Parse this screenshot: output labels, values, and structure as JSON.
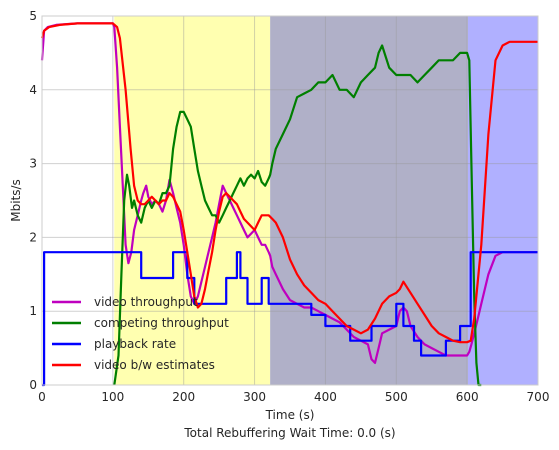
{
  "chart_data": {
    "type": "line",
    "xlabel": "Time (s)",
    "ylabel": "Mbits/s",
    "caption": "Total Rebuffering Wait Time:  0.0 (s)",
    "xlim": [
      0,
      700
    ],
    "ylim": [
      0,
      5
    ],
    "xticks": [
      0,
      100,
      200,
      300,
      400,
      500,
      600,
      700
    ],
    "yticks": [
      0,
      1,
      2,
      3,
      4,
      5
    ],
    "grid": true,
    "legend_position": "lower-left",
    "regions": [
      {
        "x0": 102,
        "x1": 322,
        "color": "#ffffb0"
      },
      {
        "x0": 322,
        "x1": 601,
        "color": "#b0b0c8"
      },
      {
        "x0": 601,
        "x1": 700,
        "color": "#b0b0ff"
      }
    ],
    "series": [
      {
        "name": "video throughput",
        "color": "#bf00bf",
        "x": [
          0,
          3,
          8,
          20,
          50,
          100,
          102,
          106,
          110,
          115,
          118,
          122,
          126,
          130,
          135,
          140,
          143,
          147,
          150,
          155,
          160,
          165,
          170,
          175,
          180,
          185,
          190,
          195,
          200,
          205,
          210,
          215,
          220,
          225,
          230,
          235,
          240,
          245,
          250,
          255,
          260,
          265,
          270,
          275,
          280,
          285,
          290,
          295,
          300,
          305,
          310,
          315,
          320,
          322,
          325,
          330,
          340,
          350,
          360,
          370,
          380,
          390,
          400,
          410,
          420,
          430,
          440,
          450,
          460,
          465,
          470,
          475,
          480,
          490,
          500,
          505,
          510,
          515,
          520,
          530,
          540,
          550,
          560,
          570,
          580,
          590,
          600,
          603,
          606,
          610,
          615,
          620,
          630,
          640,
          650,
          660,
          670,
          680,
          690,
          700
        ],
        "y": [
          4.4,
          4.8,
          4.85,
          4.88,
          4.9,
          4.9,
          4.85,
          4.3,
          3.5,
          2.5,
          1.9,
          1.65,
          1.8,
          2.1,
          2.3,
          2.5,
          2.6,
          2.7,
          2.55,
          2.45,
          2.5,
          2.45,
          2.35,
          2.5,
          2.78,
          2.6,
          2.4,
          2.2,
          1.9,
          1.5,
          1.2,
          1.1,
          1.2,
          1.4,
          1.6,
          1.8,
          2.0,
          2.2,
          2.45,
          2.7,
          2.6,
          2.5,
          2.4,
          2.3,
          2.2,
          2.1,
          2.0,
          2.05,
          2.1,
          2.0,
          1.9,
          1.9,
          1.8,
          1.75,
          1.6,
          1.5,
          1.3,
          1.15,
          1.1,
          1.05,
          1.05,
          1.0,
          0.95,
          0.9,
          0.85,
          0.75,
          0.65,
          0.6,
          0.55,
          0.35,
          0.3,
          0.5,
          0.7,
          0.75,
          0.8,
          1.0,
          1.05,
          1.0,
          0.8,
          0.65,
          0.55,
          0.5,
          0.45,
          0.4,
          0.4,
          0.4,
          0.4,
          0.45,
          0.55,
          0.7,
          0.9,
          1.1,
          1.5,
          1.75,
          1.8,
          1.8,
          1.8,
          1.8,
          1.8,
          1.8
        ]
      },
      {
        "name": "competing throughput",
        "color": "#007f00",
        "x": [
          102,
          108,
          112,
          116,
          120,
          123,
          127,
          130,
          135,
          140,
          145,
          150,
          155,
          160,
          165,
          170,
          175,
          180,
          185,
          190,
          195,
          200,
          205,
          210,
          215,
          220,
          225,
          230,
          235,
          240,
          245,
          250,
          255,
          260,
          265,
          270,
          275,
          280,
          285,
          290,
          295,
          300,
          305,
          310,
          315,
          320,
          322,
          325,
          330,
          340,
          350,
          360,
          370,
          380,
          390,
          400,
          410,
          420,
          430,
          440,
          450,
          460,
          470,
          475,
          480,
          490,
          500,
          510,
          520,
          530,
          540,
          550,
          560,
          570,
          580,
          590,
          595,
          600,
          603,
          606,
          610,
          613,
          616,
          620
        ],
        "y": [
          0.0,
          0.4,
          1.5,
          2.5,
          2.85,
          2.7,
          2.4,
          2.5,
          2.3,
          2.2,
          2.4,
          2.5,
          2.4,
          2.5,
          2.45,
          2.6,
          2.6,
          2.7,
          3.2,
          3.5,
          3.7,
          3.7,
          3.6,
          3.5,
          3.2,
          2.9,
          2.7,
          2.5,
          2.4,
          2.3,
          2.3,
          2.2,
          2.3,
          2.4,
          2.5,
          2.6,
          2.7,
          2.8,
          2.7,
          2.8,
          2.85,
          2.8,
          2.9,
          2.75,
          2.7,
          2.8,
          2.85,
          3.0,
          3.2,
          3.4,
          3.6,
          3.9,
          3.95,
          4.0,
          4.1,
          4.1,
          4.2,
          4.0,
          4.0,
          3.9,
          4.1,
          4.2,
          4.3,
          4.5,
          4.6,
          4.3,
          4.2,
          4.2,
          4.2,
          4.1,
          4.2,
          4.3,
          4.4,
          4.4,
          4.4,
          4.5,
          4.5,
          4.5,
          4.4,
          3.0,
          1.2,
          0.3,
          0.0,
          0.0
        ]
      },
      {
        "name": "playback rate",
        "color": "#0000ff",
        "x": [
          0,
          3,
          3,
          140,
          140,
          185,
          185,
          205,
          205,
          215,
          215,
          260,
          260,
          275,
          275,
          280,
          280,
          290,
          290,
          310,
          310,
          320,
          320,
          380,
          380,
          400,
          400,
          435,
          435,
          465,
          465,
          500,
          500,
          510,
          510,
          525,
          525,
          535,
          535,
          570,
          570,
          590,
          590,
          605,
          605,
          640,
          640,
          700
        ],
        "y": [
          0.0,
          0.0,
          1.8,
          1.8,
          1.45,
          1.45,
          1.8,
          1.8,
          1.45,
          1.45,
          1.1,
          1.1,
          1.45,
          1.45,
          1.8,
          1.8,
          1.45,
          1.45,
          1.1,
          1.1,
          1.45,
          1.45,
          1.1,
          1.1,
          0.95,
          0.95,
          0.8,
          0.8,
          0.6,
          0.6,
          0.8,
          0.8,
          1.1,
          1.1,
          0.8,
          0.8,
          0.6,
          0.6,
          0.4,
          0.4,
          0.6,
          0.6,
          0.8,
          0.8,
          1.8,
          1.8,
          1.8,
          1.8
        ]
      },
      {
        "name": "video b/w estimates",
        "color": "#ff0000",
        "x": [
          0,
          3,
          10,
          25,
          50,
          80,
          100,
          106,
          110,
          118,
          125,
          130,
          135,
          140,
          145,
          150,
          155,
          160,
          165,
          170,
          175,
          180,
          185,
          190,
          195,
          200,
          205,
          210,
          215,
          220,
          225,
          230,
          235,
          240,
          245,
          250,
          255,
          260,
          265,
          270,
          275,
          280,
          285,
          290,
          295,
          300,
          305,
          310,
          315,
          320,
          325,
          330,
          340,
          350,
          360,
          370,
          380,
          390,
          400,
          410,
          420,
          430,
          440,
          450,
          460,
          470,
          480,
          490,
          500,
          505,
          510,
          520,
          530,
          540,
          550,
          560,
          570,
          580,
          590,
          600,
          605,
          610,
          620,
          630,
          640,
          650,
          660,
          670,
          680,
          690,
          700
        ],
        "y": [
          4.7,
          4.8,
          4.85,
          4.88,
          4.9,
          4.9,
          4.9,
          4.85,
          4.7,
          4.0,
          3.2,
          2.7,
          2.5,
          2.45,
          2.45,
          2.5,
          2.55,
          2.5,
          2.45,
          2.5,
          2.5,
          2.6,
          2.55,
          2.45,
          2.35,
          2.1,
          1.8,
          1.5,
          1.2,
          1.05,
          1.1,
          1.3,
          1.55,
          1.8,
          2.1,
          2.35,
          2.55,
          2.6,
          2.55,
          2.5,
          2.45,
          2.35,
          2.25,
          2.2,
          2.15,
          2.1,
          2.2,
          2.3,
          2.3,
          2.3,
          2.25,
          2.2,
          2.0,
          1.7,
          1.5,
          1.35,
          1.25,
          1.15,
          1.1,
          1.0,
          0.9,
          0.8,
          0.75,
          0.7,
          0.75,
          0.9,
          1.1,
          1.2,
          1.25,
          1.3,
          1.4,
          1.25,
          1.1,
          0.95,
          0.8,
          0.7,
          0.65,
          0.6,
          0.58,
          0.58,
          0.6,
          0.9,
          1.9,
          3.4,
          4.4,
          4.6,
          4.65,
          4.65,
          4.65,
          4.65,
          4.65
        ]
      }
    ]
  }
}
